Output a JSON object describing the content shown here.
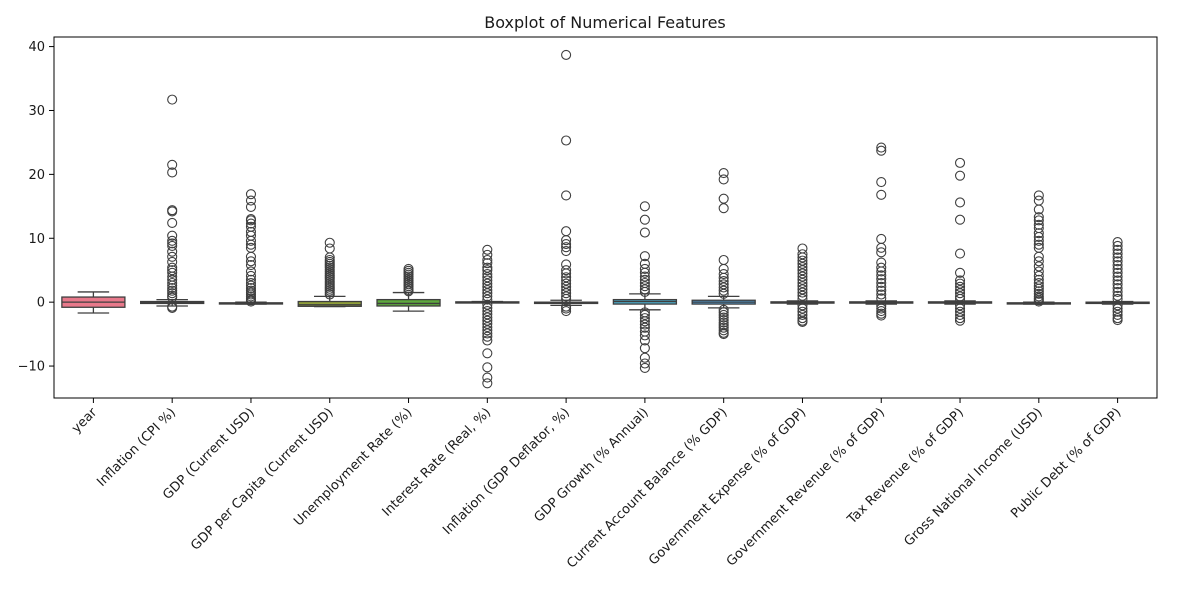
{
  "chart_data": {
    "type": "boxplot",
    "title": "Boxplot of Numerical Features",
    "xlabel": "",
    "ylabel": "",
    "ylim": [
      -15,
      41.5
    ],
    "yticks": [
      -10,
      0,
      10,
      20,
      30,
      40
    ],
    "ytick_labels": [
      "−10",
      "0",
      "10",
      "20",
      "30",
      "40"
    ],
    "grid": false,
    "legend": "none",
    "series": [
      {
        "category": "year",
        "color": "#e8798b",
        "q1": -0.8,
        "median": 0.0,
        "q3": 0.8,
        "whisker_low": -1.7,
        "whisker_high": 1.6,
        "outliers": []
      },
      {
        "category": "Inflation (CPI %)",
        "color": "#d98b53",
        "q1": -0.2,
        "median": -0.05,
        "q3": 0.1,
        "whisker_low": -0.6,
        "whisker_high": 0.4,
        "outliers": [
          31.7,
          21.5,
          20.3,
          14.4,
          14.2,
          12.4,
          10.4,
          9.6,
          9.2,
          8.8,
          7.9,
          7.1,
          6.3,
          5.4,
          5.0,
          4.6,
          4.0,
          3.5,
          3.0,
          2.6,
          2.2,
          1.8,
          1.4,
          1.0,
          0.7,
          -0.7,
          -0.9
        ]
      },
      {
        "category": "GDP (Current USD)",
        "color": "#b39a3d",
        "q1": -0.25,
        "median": -0.2,
        "q3": -0.1,
        "whisker_low": -0.3,
        "whisker_high": 0.0,
        "outliers": [
          16.9,
          15.9,
          14.9,
          13.0,
          12.8,
          12.3,
          11.8,
          11.0,
          10.4,
          9.6,
          9.0,
          8.5,
          7.1,
          6.4,
          5.8,
          4.8,
          4.1,
          3.5,
          3.0,
          2.6,
          2.2,
          1.8,
          1.5,
          1.2,
          0.9,
          0.6,
          0.3,
          0.1
        ]
      },
      {
        "category": "GDP per Capita (Current USD)",
        "color": "#8f9e3a",
        "q1": -0.65,
        "median": -0.4,
        "q3": 0.1,
        "whisker_low": -0.7,
        "whisker_high": 0.9,
        "outliers": [
          9.3,
          8.4,
          7.0,
          6.6,
          6.3,
          6.0,
          5.7,
          5.4,
          5.1,
          4.8,
          4.5,
          4.2,
          3.9,
          3.6,
          3.3,
          3.0,
          2.7,
          2.4,
          2.1,
          1.8,
          1.5,
          1.2
        ]
      },
      {
        "category": "Unemployment Rate (%)",
        "color": "#5fa93e",
        "q1": -0.6,
        "median": -0.2,
        "q3": 0.4,
        "whisker_low": -1.4,
        "whisker_high": 1.5,
        "outliers": [
          5.2,
          4.9,
          4.6,
          4.3,
          4.0,
          3.7,
          3.4,
          3.1,
          2.8,
          2.5,
          2.2,
          1.9,
          1.7
        ]
      },
      {
        "category": "Interest Rate (Real, %)",
        "color": "#48ab7a",
        "q1": -0.05,
        "median": 0.0,
        "q3": 0.05,
        "whisker_low": -0.1,
        "whisker_high": 0.1,
        "outliers": [
          8.2,
          7.4,
          6.6,
          6.1,
          5.4,
          5.0,
          4.4,
          3.9,
          3.4,
          2.9,
          2.4,
          1.9,
          1.4,
          0.9,
          0.4,
          -0.4,
          -0.9,
          -1.4,
          -1.9,
          -2.4,
          -2.9,
          -3.4,
          -3.9,
          -4.4,
          -4.9,
          -5.4,
          -6.0,
          -8.0,
          -10.2,
          -11.8,
          -12.7
        ]
      },
      {
        "category": "Inflation (GDP Deflator, %)",
        "color": "#4aa6a0",
        "q1": -0.2,
        "median": -0.1,
        "q3": 0.0,
        "whisker_low": -0.5,
        "whisker_high": 0.3,
        "outliers": [
          38.7,
          25.3,
          16.7,
          11.1,
          9.7,
          9.1,
          8.6,
          8.0,
          5.9,
          5.0,
          4.5,
          3.9,
          3.4,
          2.9,
          2.4,
          1.9,
          1.4,
          0.9,
          0.5,
          -0.7,
          -1.0,
          -1.4
        ]
      },
      {
        "category": "GDP Growth (% Annual)",
        "color": "#4ba3bf",
        "q1": -0.3,
        "median": 0.1,
        "q3": 0.4,
        "whisker_low": -1.2,
        "whisker_high": 1.3,
        "outliers": [
          15.0,
          12.9,
          10.9,
          7.2,
          6.0,
          5.2,
          4.6,
          4.0,
          3.5,
          3.0,
          2.5,
          2.0,
          1.6,
          -1.6,
          -2.0,
          -2.5,
          -3.0,
          -3.5,
          -4.0,
          -4.6,
          -5.2,
          -6.0,
          -7.2,
          -8.7,
          -9.6,
          -10.3
        ]
      },
      {
        "category": "Current Account Balance (% GDP)",
        "color": "#4f9fd9",
        "q1": -0.3,
        "median": 0.0,
        "q3": 0.3,
        "whisker_low": -0.9,
        "whisker_high": 0.9,
        "outliers": [
          20.2,
          19.2,
          16.2,
          14.7,
          6.6,
          5.2,
          4.4,
          3.8,
          3.3,
          2.8,
          2.3,
          1.8,
          1.3,
          -1.2,
          -1.6,
          -2.0,
          -2.4,
          -2.8,
          -3.2,
          -3.6,
          -4.0,
          -4.4,
          -4.8,
          -5.0
        ]
      },
      {
        "category": "Government Expense (% of GDP)",
        "color": "#8c97e6",
        "q1": -0.15,
        "median": -0.05,
        "q3": 0.05,
        "whisker_low": -0.3,
        "whisker_high": 0.2,
        "outliers": [
          8.4,
          7.5,
          7.0,
          6.5,
          6.0,
          5.5,
          5.0,
          4.5,
          4.0,
          3.5,
          3.0,
          2.5,
          2.0,
          1.5,
          1.0,
          0.5,
          -0.5,
          -1.0,
          -1.5,
          -2.0,
          -2.5,
          -2.9,
          -3.1
        ]
      },
      {
        "category": "Government Revenue (% of GDP)",
        "color": "#bf87e3",
        "q1": -0.15,
        "median": -0.05,
        "q3": 0.05,
        "whisker_low": -0.3,
        "whisker_high": 0.2,
        "outliers": [
          24.2,
          23.7,
          18.8,
          16.8,
          9.9,
          8.5,
          7.8,
          6.2,
          5.4,
          4.8,
          4.2,
          3.6,
          3.0,
          2.4,
          1.8,
          1.2,
          0.6,
          -0.6,
          -1.0,
          -1.4,
          -1.8,
          -2.1
        ]
      },
      {
        "category": "Tax Revenue (% of GDP)",
        "color": "#e07fd3",
        "q1": -0.15,
        "median": -0.05,
        "q3": 0.05,
        "whisker_low": -0.3,
        "whisker_high": 0.2,
        "outliers": [
          21.8,
          19.8,
          15.6,
          12.9,
          7.6,
          4.6,
          3.4,
          2.9,
          2.4,
          1.9,
          1.4,
          0.9,
          0.5,
          -0.5,
          -1.0,
          -1.5,
          -2.0,
          -2.5,
          -2.9
        ]
      },
      {
        "category": "Gross National Income (USD)",
        "color": "#e67fae",
        "q1": -0.25,
        "median": -0.2,
        "q3": -0.1,
        "whisker_low": -0.3,
        "whisker_high": 0.0,
        "outliers": [
          16.7,
          15.9,
          14.5,
          13.3,
          12.8,
          12.1,
          11.6,
          10.8,
          10.2,
          9.6,
          9.0,
          8.5,
          7.1,
          6.4,
          5.6,
          4.8,
          4.1,
          3.5,
          3.0,
          2.5,
          2.1,
          1.7,
          1.3,
          0.9,
          0.6,
          0.3,
          0.1
        ]
      },
      {
        "category": "Public Debt (% of GDP)",
        "color": "#e57a92",
        "q1": -0.2,
        "median": -0.1,
        "q3": 0.0,
        "whisker_low": -0.3,
        "whisker_high": 0.1,
        "outliers": [
          9.4,
          8.8,
          8.2,
          7.6,
          7.0,
          6.4,
          5.8,
          5.2,
          4.6,
          4.0,
          3.4,
          2.8,
          2.2,
          1.6,
          1.0,
          0.5,
          -0.5,
          -1.0,
          -1.5,
          -2.0,
          -2.5,
          -2.8
        ]
      }
    ]
  }
}
